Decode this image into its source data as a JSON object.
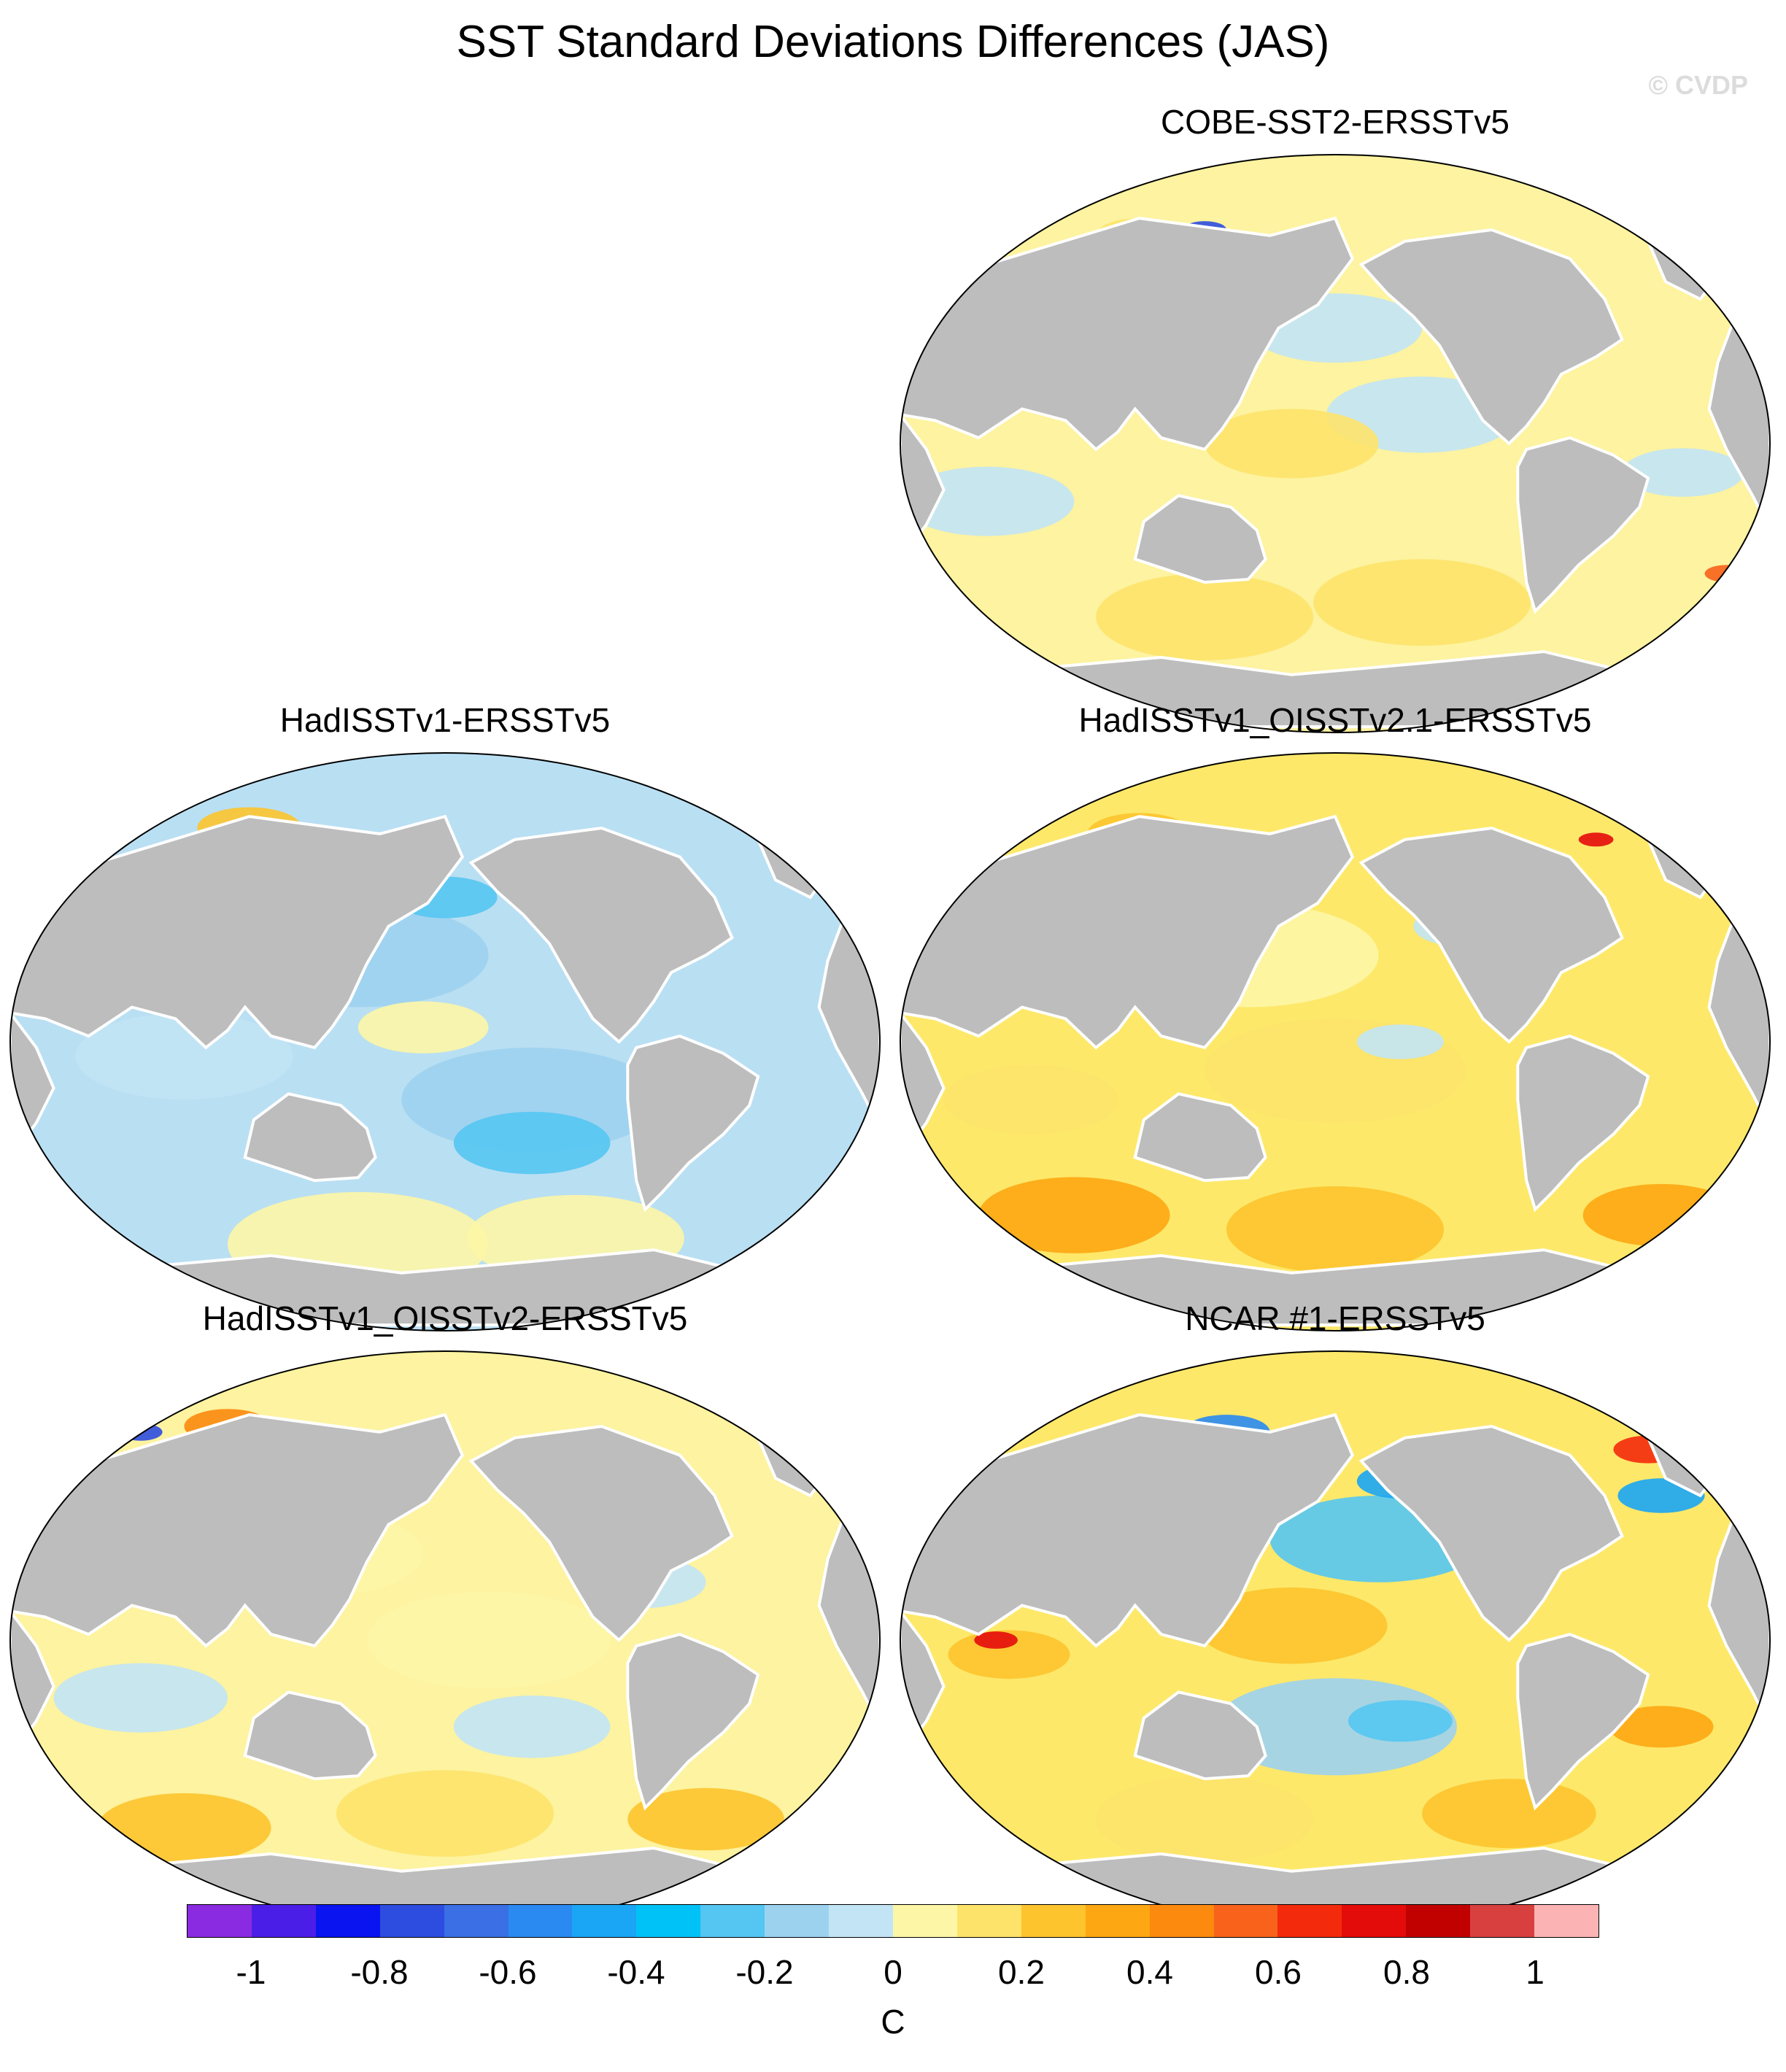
{
  "title": "SST Standard Deviations Differences (JAS)",
  "watermark": "© CVDP",
  "panels": [
    {
      "title": "COBE-SST2-ERSSTv5",
      "style": "mixed",
      "ocean": "#fdf3a0"
    },
    {
      "title": "HadISSTv1-ERSSTv5",
      "style": "cool",
      "ocean": "#b9dff3"
    },
    {
      "title": "HadISSTv1_OISSTv2.1-ERSSTv5",
      "style": "warm",
      "ocean": "#fde86a"
    },
    {
      "title": "HadISSTv1_OISSTv2-ERSSTv5",
      "style": "mixed-warm",
      "ocean": "#fdf3a0"
    },
    {
      "title": "NCAR #1-ERSSTv5",
      "style": "strong",
      "ocean": "#fde86a"
    }
  ],
  "colorbar": {
    "unit": "C",
    "colors": [
      "#8a2be2",
      "#4b1ee8",
      "#0a14f0",
      "#2d4de0",
      "#3a6fe6",
      "#2a8af2",
      "#1aa5f5",
      "#00c2f7",
      "#55c6f2",
      "#9dd2ef",
      "#c2e4f5",
      "#fdf6a6",
      "#fde36a",
      "#fdc42e",
      "#fda712",
      "#fb8a0e",
      "#f8621a",
      "#f42a0c",
      "#e40b0b",
      "#c10000",
      "#d84040",
      "#fbb3b3"
    ],
    "labels": [
      "-1",
      "-0.8",
      "-0.6",
      "-0.4",
      "-0.2",
      "0",
      "0.2",
      "0.4",
      "0.6",
      "0.8",
      "1"
    ]
  }
}
